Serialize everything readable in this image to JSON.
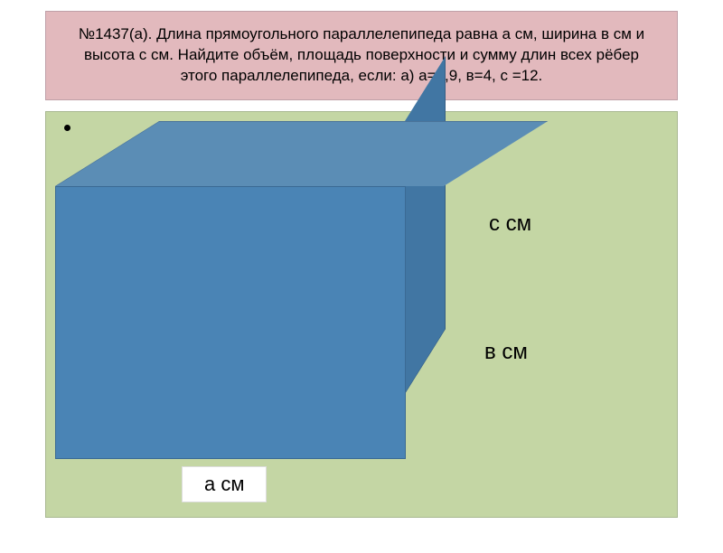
{
  "header": {
    "text": "№1437(а). Длина прямоугольного параллелепипеда равна а см, ширина в см и высота с см. Найдите объём, площадь поверхности и сумму длин всех рёбер этого параллелепипеда, если: а) а=5,9, в=4, с =12.",
    "background_color": "#e2b9bd",
    "text_color": "#000000",
    "font_size": 17
  },
  "main_area": {
    "background_color": "#c4d6a4"
  },
  "cuboid": {
    "front_color": "#4a84b5",
    "top_color": "#5b8db5",
    "side_color": "#4176a3",
    "edge_color": "#3a6a94"
  },
  "labels": {
    "c": "с см",
    "b": "в см",
    "a": "а см",
    "font_size": 24,
    "color": "#000000",
    "a_box_bg": "#ffffff"
  }
}
